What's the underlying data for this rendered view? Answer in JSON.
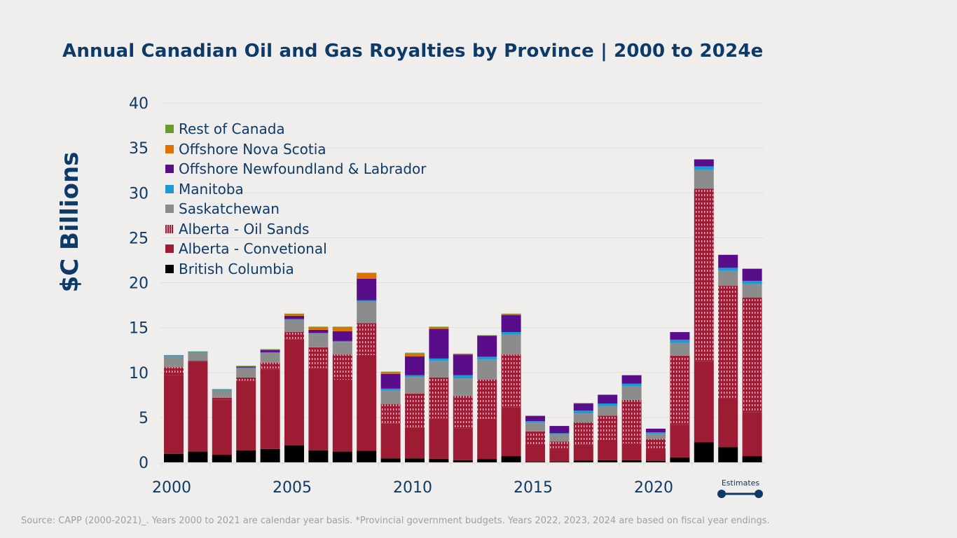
{
  "chart_data": {
    "type": "bar",
    "stacked": true,
    "title": "Annual Canadian Oil and Gas Royalties by Province | 2000 to 2024e",
    "ylabel": "$C Billions",
    "xlabel": "",
    "ylim": [
      0,
      40
    ],
    "yticks": [
      "0",
      "5",
      "10",
      "15",
      "20",
      "25",
      "30",
      "35",
      "40"
    ],
    "xtick_labels": [
      "2000",
      "2005",
      "2010",
      "2015",
      "2020"
    ],
    "grid": true,
    "legend_position": "top-left",
    "categories": [
      "2000",
      "2001",
      "2002",
      "2003",
      "2004",
      "2005",
      "2006",
      "2007",
      "2008",
      "2009",
      "2010",
      "2011",
      "2012",
      "2013",
      "2014",
      "2015",
      "2016",
      "2017",
      "2018",
      "2019",
      "2020",
      "2021",
      "2022",
      "2023",
      "2024"
    ],
    "series": [
      {
        "name": "British Columbia",
        "color": "#000000",
        "values": [
          0.94,
          1.2,
          0.85,
          1.35,
          1.5,
          1.9,
          1.35,
          1.2,
          1.3,
          0.45,
          0.45,
          0.4,
          0.25,
          0.35,
          0.7,
          0.1,
          0.1,
          0.2,
          0.25,
          0.25,
          0.15,
          0.55,
          2.25,
          1.7,
          0.7
        ]
      },
      {
        "name": "Alberta - Convetional",
        "color": "#9e1b34",
        "values": [
          8.8,
          10.0,
          6.15,
          7.75,
          8.8,
          11.8,
          9.15,
          8.0,
          10.65,
          3.9,
          3.4,
          4.5,
          3.5,
          4.5,
          5.4,
          1.85,
          1.3,
          1.8,
          2.25,
          1.85,
          1.25,
          3.6,
          9.0,
          5.4,
          4.9
        ]
      },
      {
        "name": "Alberta - Oil Sands",
        "color": "#9e1b34",
        "pattern": "hatched",
        "values": [
          0.85,
          0.1,
          0.2,
          0.35,
          0.8,
          0.8,
          2.3,
          2.8,
          3.55,
          2.15,
          3.8,
          4.55,
          3.65,
          4.35,
          5.9,
          1.5,
          0.9,
          2.45,
          2.7,
          4.85,
          1.2,
          7.7,
          19.2,
          12.55,
          12.75
        ]
      },
      {
        "name": "Saskatchewan",
        "color": "#8c8c8c",
        "values": [
          1.2,
          0.95,
          0.8,
          1.05,
          1.1,
          1.4,
          1.55,
          1.4,
          2.4,
          1.5,
          1.85,
          1.85,
          1.95,
          2.25,
          2.2,
          1.0,
          0.8,
          1.0,
          1.05,
          1.5,
          0.6,
          1.45,
          2.1,
          1.65,
          1.5
        ]
      },
      {
        "name": "Manitoba",
        "color": "#1a9ad6",
        "values": [
          0.1,
          0.05,
          0.1,
          0.05,
          0.05,
          0.05,
          0.05,
          0.1,
          0.15,
          0.2,
          0.2,
          0.25,
          0.35,
          0.3,
          0.3,
          0.15,
          0.15,
          0.3,
          0.3,
          0.3,
          0.15,
          0.35,
          0.4,
          0.35,
          0.35
        ]
      },
      {
        "name": "Offshore Newfoundland & Labrador",
        "color": "#5a0d8a",
        "values": [
          0,
          0,
          0,
          0.1,
          0.25,
          0.35,
          0.35,
          1.1,
          2.4,
          1.65,
          2.1,
          3.3,
          2.3,
          2.35,
          1.9,
          0.55,
          0.8,
          0.8,
          0.95,
          0.95,
          0.4,
          0.85,
          0.75,
          1.45,
          1.35
        ]
      },
      {
        "name": "Offshore Nova Scotia",
        "color": "#e07000",
        "values": [
          0,
          0,
          0,
          0,
          0,
          0.2,
          0.3,
          0.45,
          0.6,
          0.2,
          0.3,
          0.2,
          0.05,
          0,
          0.1,
          0,
          0,
          0,
          0,
          0,
          0,
          0,
          0,
          0,
          0
        ]
      },
      {
        "name": "Rest of Canada",
        "color": "#6a9a2a",
        "values": [
          0.05,
          0.05,
          0.05,
          0.1,
          0.1,
          0.05,
          0.05,
          0.05,
          0.05,
          0.05,
          0.1,
          0.05,
          0.05,
          0.05,
          0.05,
          0.05,
          0,
          0.05,
          0.05,
          0,
          0,
          0,
          0.05,
          0,
          0
        ]
      }
    ],
    "annotations": [
      {
        "text": "Estimates",
        "range": [
          "2023",
          "2024"
        ]
      }
    ]
  },
  "source": "Source: CAPP (2000-2021)_. Years 2000 to 2021 are calendar year basis. *Provincial government budgets. Years 2022, 2023, 2024 are based on fiscal year endings.",
  "colors": {
    "title": "#0d3a66",
    "background": "#efeeed"
  }
}
